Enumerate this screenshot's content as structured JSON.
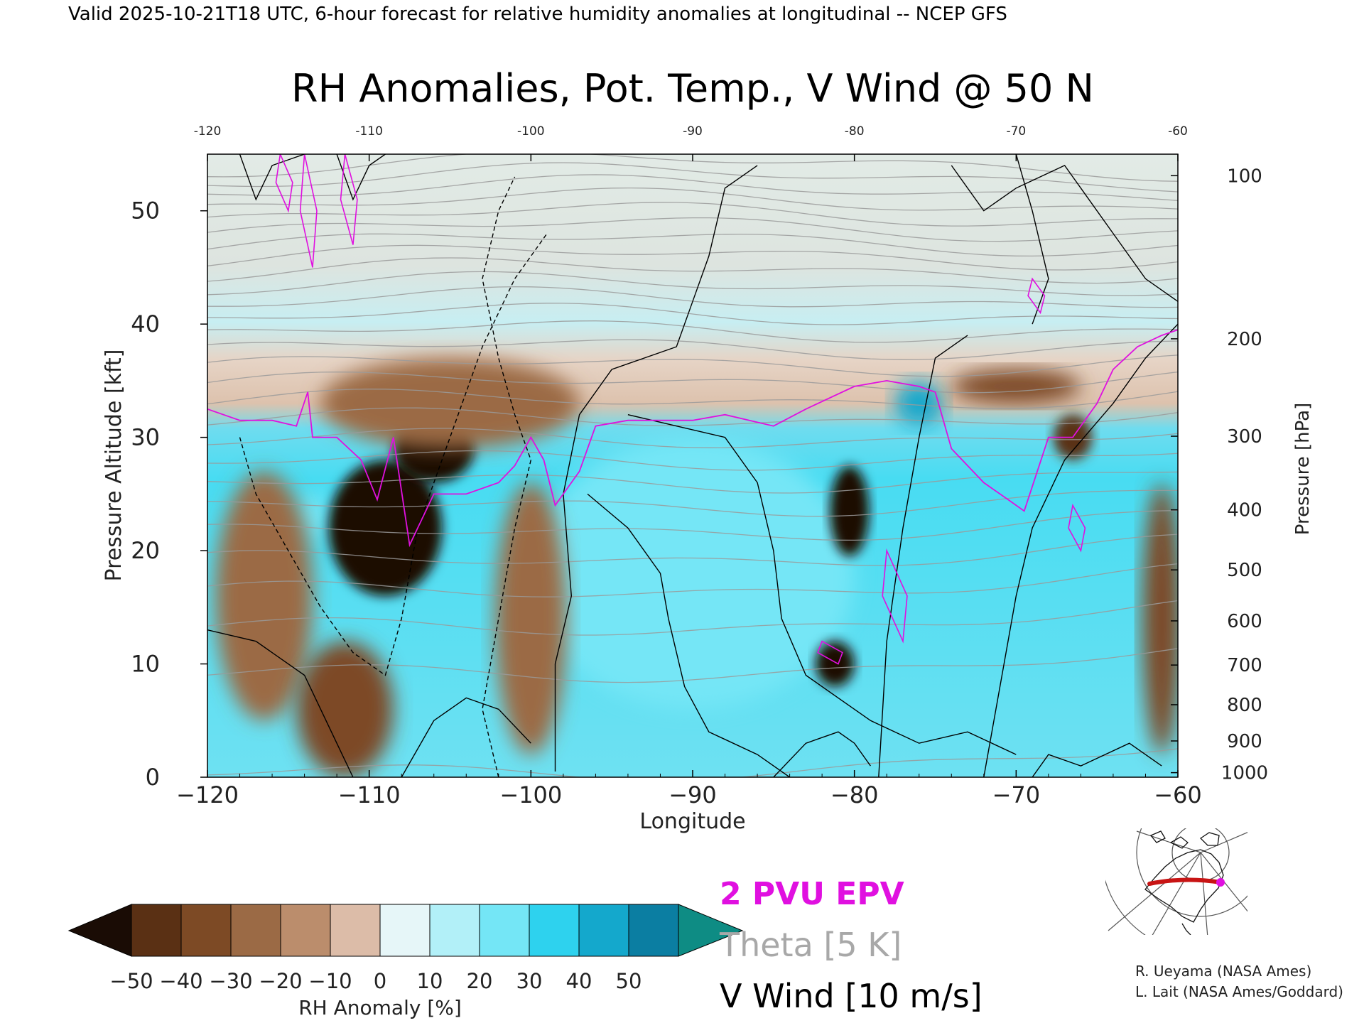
{
  "header": {
    "valid_line": "Valid 2025-10-21T18 UTC, 6-hour forecast for relative humidity anomalies at longitudinal -- NCEP GFS",
    "title": "RH Anomalies, Pot. Temp., V Wind @ 50 N"
  },
  "chart_data": {
    "type": "heatmap",
    "title": "RH Anomalies, Pot. Temp., V Wind @ 50 N",
    "xlabel": "Longitude",
    "ylabel": "Pressure Altitude [kft]",
    "y2label": "Pressure [hPa]",
    "xlim": [
      -120,
      -60
    ],
    "ylim": [
      0,
      55
    ],
    "x_ticks": [
      -120,
      -110,
      -100,
      -90,
      -80,
      -70,
      -60
    ],
    "x_tick_labels": [
      "−120",
      "−110",
      "−100",
      "−90",
      "−80",
      "−70",
      "−60"
    ],
    "top_tick_labels": [
      "-120",
      "-110",
      "-100",
      "-90",
      "-80",
      "-70",
      "-60"
    ],
    "y_ticks": [
      0,
      10,
      20,
      30,
      40,
      50
    ],
    "pressure_ticks": [
      {
        "label": "100",
        "kft": 53.1
      },
      {
        "label": "200",
        "kft": 38.7
      },
      {
        "label": "300",
        "kft": 30.1
      },
      {
        "label": "400",
        "kft": 23.6
      },
      {
        "label": "500",
        "kft": 18.3
      },
      {
        "label": "600",
        "kft": 13.8
      },
      {
        "label": "700",
        "kft": 9.9
      },
      {
        "label": "800",
        "kft": 6.4
      },
      {
        "label": "900",
        "kft": 3.2
      },
      {
        "label": "1000",
        "kft": 0.4
      }
    ],
    "colorbar": {
      "label": "RH Anomaly [%]",
      "ticks": [
        "−50",
        "−40",
        "−30",
        "−20",
        "−10",
        "0",
        "10",
        "20",
        "30",
        "40",
        "50"
      ],
      "colors": [
        "#1a0c05",
        "#5a3014",
        "#7d4a25",
        "#9b6a45",
        "#bb8d6c",
        "#dcbca8",
        "#e6f6f8",
        "#b2f0f8",
        "#74e6f6",
        "#2ed2ee",
        "#14a8cc",
        "#0b7ea2",
        "#0e8c84"
      ]
    },
    "dry_regions": [
      {
        "lon": -116.5,
        "kft": 16,
        "rx": 3,
        "ry": 11,
        "anomaly": -25
      },
      {
        "lon": -111.5,
        "kft": 6,
        "rx": 3,
        "ry": 6,
        "anomaly": -40
      },
      {
        "lon": -109,
        "kft": 22,
        "rx": 3.5,
        "ry": 6,
        "anomaly": -50
      },
      {
        "lon": -106,
        "kft": 29,
        "rx": 2.5,
        "ry": 3,
        "anomaly": -50
      },
      {
        "lon": -105,
        "kft": 33,
        "rx": 8,
        "ry": 4,
        "anomaly": -25
      },
      {
        "lon": -100,
        "kft": 14,
        "rx": 2.2,
        "ry": 12,
        "anomaly": -30
      },
      {
        "lon": -80.3,
        "kft": 23.5,
        "rx": 1.2,
        "ry": 4,
        "anomaly": -50
      },
      {
        "lon": -81.2,
        "kft": 10,
        "rx": 1.2,
        "ry": 2,
        "anomaly": -50
      },
      {
        "lon": -70,
        "kft": 34.5,
        "rx": 4,
        "ry": 1.5,
        "anomaly": -35
      },
      {
        "lon": -66.5,
        "kft": 30,
        "rx": 1.2,
        "ry": 2,
        "anomaly": -45
      },
      {
        "lon": -61,
        "kft": 14,
        "rx": 1.2,
        "ry": 12,
        "anomaly": -35
      }
    ],
    "moist_regions": [
      {
        "lon": -90,
        "kft": 18,
        "rx": 10,
        "ry": 12,
        "anomaly": 25
      },
      {
        "lon": -76,
        "kft": 33,
        "rx": 1.5,
        "ry": 2,
        "anomaly": 45
      },
      {
        "lon": -113.5,
        "kft": 23,
        "rx": 1,
        "ry": 2,
        "anomaly": 20
      }
    ],
    "series": [
      {
        "name": "2 PVU EPV",
        "color": "#e010e0",
        "x": [
          -120,
          -118,
          -116,
          -114.5,
          -113.8,
          -113.5,
          -112,
          -110.5,
          -109.5,
          -108.5,
          -107.5,
          -106,
          -104,
          -102,
          -101,
          -100,
          -99.2,
          -98.5,
          -97,
          -96,
          -94,
          -92,
          -90,
          -88,
          -85,
          -83,
          -80,
          -78,
          -76,
          -75,
          -74,
          -72,
          -70.5,
          -69.5,
          -68,
          -66.5,
          -65,
          -64,
          -62.5,
          -61,
          -60
        ],
        "y": [
          32.5,
          31.5,
          31.5,
          31,
          34,
          30,
          30,
          28,
          24.5,
          30,
          20.5,
          25,
          25,
          26,
          27.5,
          30,
          28,
          24,
          27,
          31,
          31.5,
          31.5,
          31.5,
          32,
          31,
          32.5,
          34.5,
          35,
          34.5,
          34,
          29,
          26,
          24.5,
          23.5,
          30,
          30,
          33,
          36,
          38,
          39,
          39.5
        ]
      }
    ],
    "theta_isentropes": {
      "name": "Theta [5 K]",
      "color": "#9a9a9a",
      "interval_K": 5,
      "range_K": [
        285,
        420
      ]
    },
    "v_wind_contours": {
      "name": "V Wind [10 m/s]",
      "color": "#000000",
      "interval_ms": 10
    },
    "legend": [
      "2 PVU EPV",
      "Theta [5 K]",
      "V Wind [10 m/s]"
    ],
    "legend_colors": [
      "#e010e0",
      "#a8a8a8",
      "#000000"
    ],
    "inset_map": {
      "section_color": "#c81414",
      "marker_color": "#e010e0",
      "latitude": 50
    }
  },
  "credits": [
    "R. Ueyama (NASA Ames)",
    "L. Lait (NASA Ames/Goddard)"
  ]
}
